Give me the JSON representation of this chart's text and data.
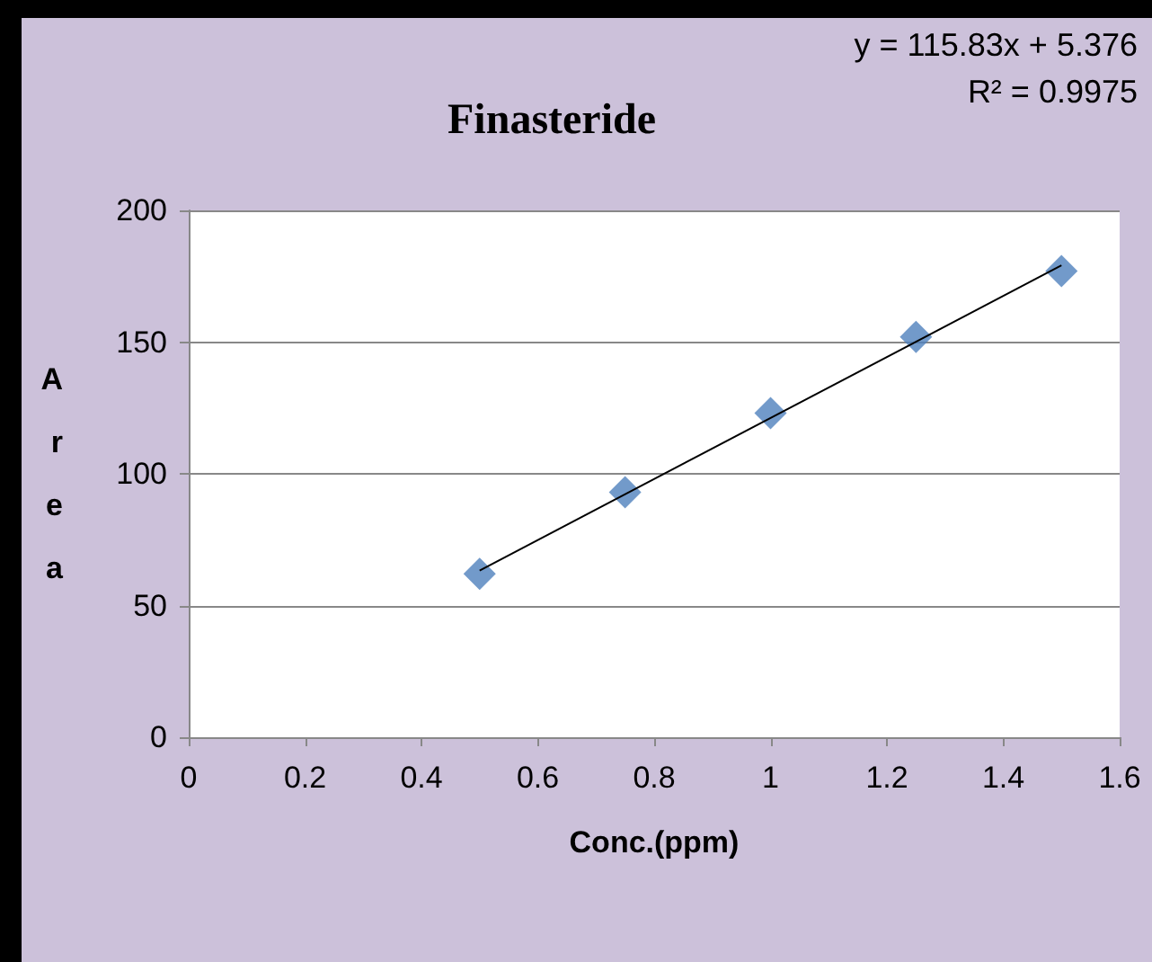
{
  "chart_data": {
    "type": "scatter",
    "title": "Finasteride",
    "xlabel": "Conc.(ppm)",
    "ylabel": "Area",
    "annotations": [
      "y = 115.83x + 5.376",
      "R² = 0.9975"
    ],
    "series": [
      {
        "color": "#4f81bd",
        "x": [
          0.5,
          0.75,
          1,
          1.25,
          1.5
        ],
        "values": [
          62,
          93,
          123,
          152,
          177
        ]
      },
      {
        "type": "line",
        "color": "#000000",
        "marker": "none",
        "x": [
          0.5,
          1.5
        ],
        "values": [
          63.3,
          179.1
        ]
      }
    ],
    "marker": "diamond",
    "grid": "y",
    "xlim": [
      0,
      1.6
    ],
    "xticks": [
      0,
      0.2,
      0.4,
      0.6,
      0.8,
      1,
      1.2,
      1.4,
      1.6
    ],
    "ylim": [
      0,
      200
    ],
    "yticks": [
      0,
      50,
      100,
      150,
      200
    ]
  }
}
